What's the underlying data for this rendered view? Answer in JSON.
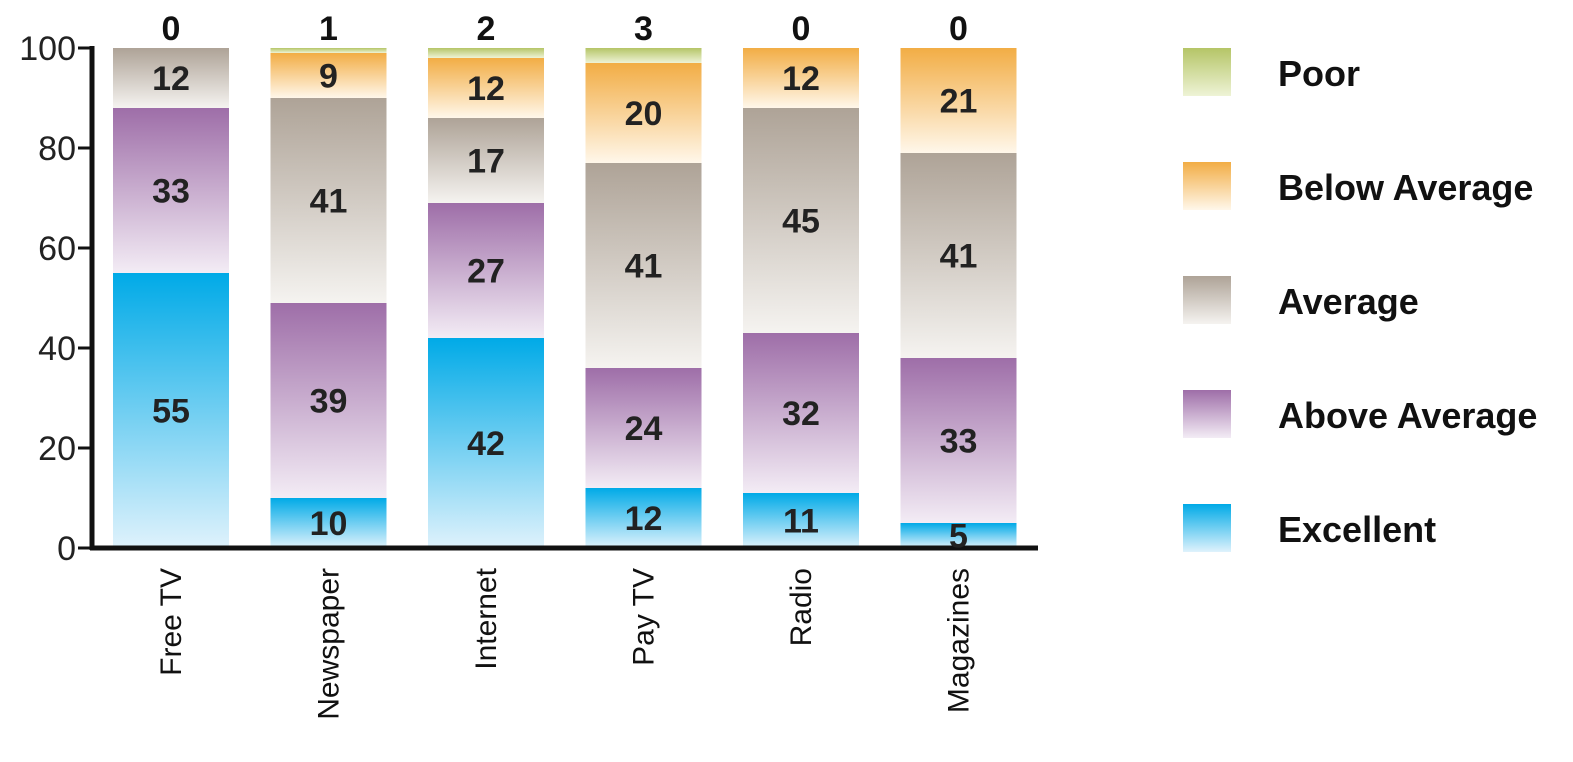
{
  "chart_data": {
    "type": "bar",
    "stacked": true,
    "categories": [
      "Free TV",
      "Newspaper",
      "Internet",
      "Pay TV",
      "Radio",
      "Magazines"
    ],
    "series": [
      {
        "name": "Excellent",
        "values": [
          55,
          10,
          42,
          12,
          11,
          5
        ],
        "color": "#00aae7",
        "light": "#dff2fc"
      },
      {
        "name": "Above Average",
        "values": [
          33,
          39,
          27,
          24,
          32,
          33
        ],
        "color": "#9e6ea8",
        "light": "#f3ecf5"
      },
      {
        "name": "Average",
        "values": [
          12,
          41,
          17,
          41,
          45,
          41
        ],
        "color": "#aea397",
        "light": "#f5f3f0"
      },
      {
        "name": "Below Average",
        "values": [
          0,
          9,
          12,
          20,
          12,
          21
        ],
        "color": "#f2ad45",
        "light": "#fff7ea"
      },
      {
        "name": "Poor",
        "values": [
          0,
          1,
          2,
          3,
          0,
          0
        ],
        "color": "#b5c567",
        "light": "#eef3d6"
      }
    ],
    "top_labels": [
      "0",
      "1",
      "2",
      "3",
      "0",
      "0"
    ],
    "segment_labels": [
      [
        "55",
        "33",
        "12",
        "",
        ""
      ],
      [
        "10",
        "39",
        "41",
        "9",
        ""
      ],
      [
        "42",
        "27",
        "17",
        "12",
        ""
      ],
      [
        "12",
        "24",
        "41",
        "20",
        ""
      ],
      [
        "11",
        "32",
        "45",
        "12",
        ""
      ],
      [
        "5",
        "33",
        "41",
        "21",
        ""
      ]
    ],
    "yticks": [
      "0",
      "20",
      "40",
      "60",
      "80",
      "100"
    ],
    "ylim": [
      0,
      100
    ],
    "legend_order": [
      "Poor",
      "Below Average",
      "Average",
      "Above Average",
      "Excellent"
    ],
    "legend_position": "right",
    "grid": false,
    "title": "",
    "xlabel": "",
    "ylabel": ""
  }
}
